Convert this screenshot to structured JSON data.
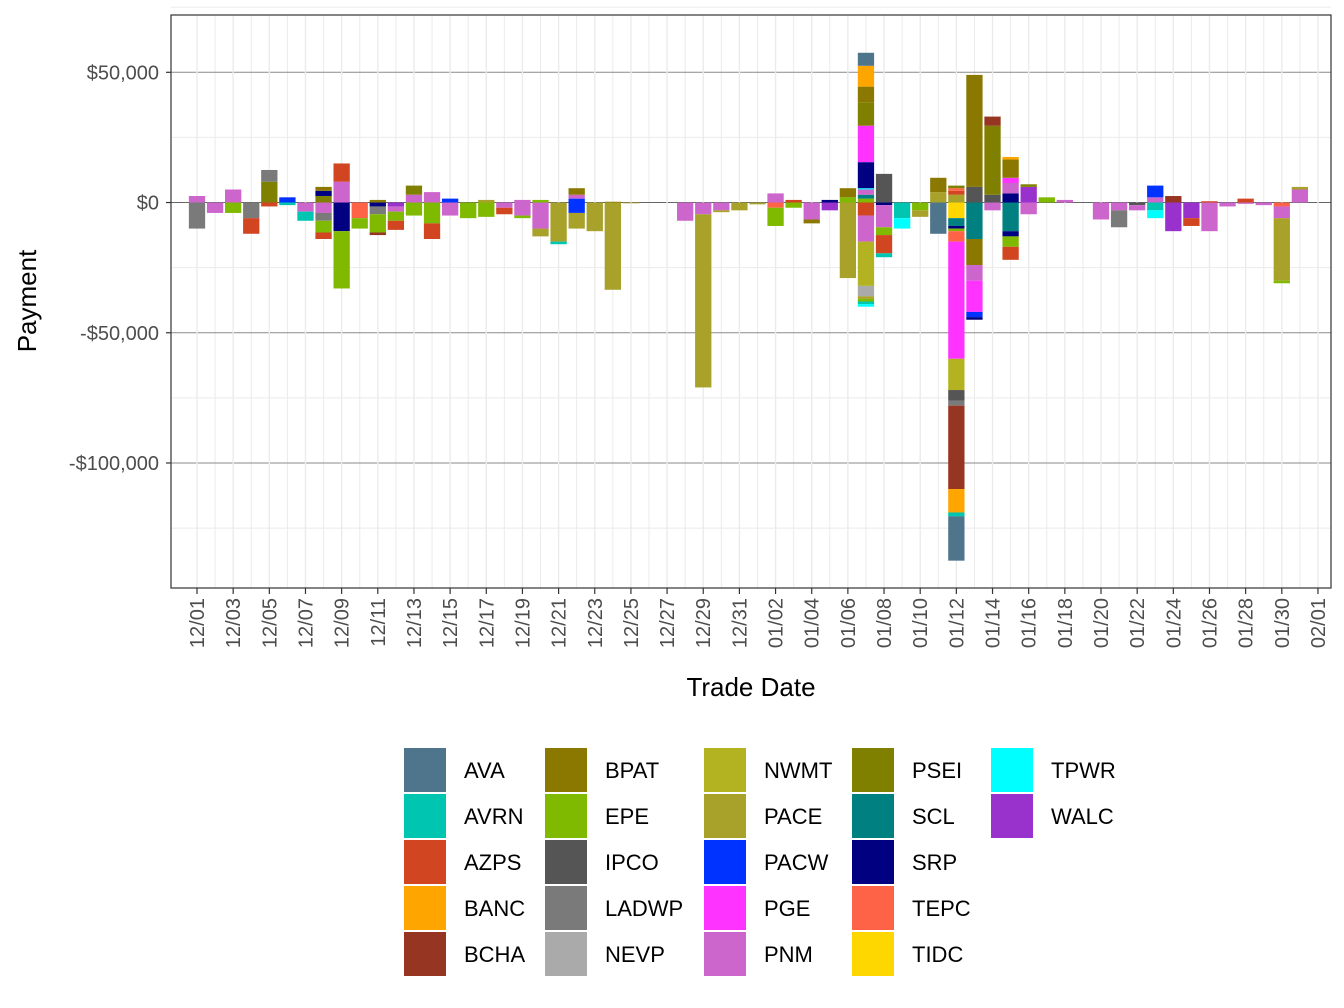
{
  "chart_data": {
    "type": "bar",
    "stacked": true,
    "title": "",
    "xlabel": "Trade Date",
    "ylabel": "Payment",
    "ylim": [
      -148000,
      72000
    ],
    "y_ticks": [
      {
        "value": 50000,
        "label": "$50,000"
      },
      {
        "value": 0,
        "label": "$0"
      },
      {
        "value": -50000,
        "label": "-$50,000"
      },
      {
        "value": -100000,
        "label": "-$100,000"
      }
    ],
    "x_tick_labels": [
      "12/01",
      "12/03",
      "12/05",
      "12/07",
      "12/09",
      "12/11",
      "12/13",
      "12/15",
      "12/17",
      "12/19",
      "12/21",
      "12/23",
      "12/25",
      "12/27",
      "12/29",
      "12/31",
      "01/02",
      "01/04",
      "01/06",
      "01/08",
      "01/10",
      "01/12",
      "01/14",
      "01/16",
      "01/18",
      "01/20",
      "01/22",
      "01/24",
      "01/26",
      "01/28",
      "01/30",
      "02/01"
    ],
    "legend_title": "",
    "legend_position": "bottom",
    "legend_columns": [
      [
        "AVA",
        "AVRN",
        "AZPS",
        "BANC",
        "BCHA"
      ],
      [
        "BPAT",
        "EPE",
        "IPCO",
        "LADWP",
        "NEVP"
      ],
      [
        "NWMT",
        "PACE",
        "PACW",
        "PGE",
        "PNM"
      ],
      [
        "PSEI",
        "SCL",
        "SRP",
        "TEPC",
        "TIDC"
      ],
      [
        "TPWR",
        "WALC"
      ]
    ],
    "series_colors": {
      "AVA": "#4e758c",
      "AVRN": "#00c5b0",
      "AZPS": "#d14520",
      "BANC": "#ffa500",
      "BCHA": "#963522",
      "BPAT": "#8a7800",
      "EPE": "#7fba00",
      "IPCO": "#555555",
      "LADWP": "#7a7a7a",
      "NEVP": "#aaaaaa",
      "NWMT": "#b3b322",
      "PACE": "#a8a22b",
      "PACW": "#0033ff",
      "PGE": "#ff33ff",
      "PNM": "#cc66cc",
      "PSEI": "#808000",
      "SCL": "#008080",
      "SRP": "#000080",
      "TEPC": "#ff6347",
      "TIDC": "#ffd700",
      "TPWR": "#00ffff",
      "WALC": "#9932cc"
    },
    "bars": [
      {
        "date": "12/01",
        "segments": [
          {
            "s": "PNM",
            "v": 2500
          },
          {
            "s": "LADWP",
            "v": -10000
          }
        ]
      },
      {
        "date": "12/02",
        "segments": [
          {
            "s": "PNM",
            "v": -4000
          }
        ]
      },
      {
        "date": "12/03",
        "segments": [
          {
            "s": "PNM",
            "v": 5000
          },
          {
            "s": "EPE",
            "v": -4000
          }
        ]
      },
      {
        "date": "12/04",
        "segments": [
          {
            "s": "LADWP",
            "v": -6000
          },
          {
            "s": "AZPS",
            "v": -6000
          }
        ]
      },
      {
        "date": "12/05",
        "segments": [
          {
            "s": "PSEI",
            "v": 8000
          },
          {
            "s": "LADWP",
            "v": 4500
          },
          {
            "s": "AZPS",
            "v": -1500
          }
        ]
      },
      {
        "date": "12/06",
        "segments": [
          {
            "s": "PACW",
            "v": 2000
          },
          {
            "s": "AVRN",
            "v": -1000
          }
        ]
      },
      {
        "date": "12/07",
        "segments": [
          {
            "s": "PNM",
            "v": -3500
          },
          {
            "s": "AVRN",
            "v": -3500
          }
        ]
      },
      {
        "date": "12/08",
        "segments": [
          {
            "s": "PSEI",
            "v": 2500
          },
          {
            "s": "SRP",
            "v": 2000
          },
          {
            "s": "BPAT",
            "v": 1500
          },
          {
            "s": "PNM",
            "v": -4000
          },
          {
            "s": "LADWP",
            "v": -3000
          },
          {
            "s": "EPE",
            "v": -4500
          },
          {
            "s": "AZPS",
            "v": -2500
          }
        ]
      },
      {
        "date": "12/09",
        "segments": [
          {
            "s": "PNM",
            "v": 8000
          },
          {
            "s": "AZPS",
            "v": 7000
          },
          {
            "s": "SRP",
            "v": -11000
          },
          {
            "s": "EPE",
            "v": -22000
          }
        ]
      },
      {
        "date": "12/10",
        "segments": [
          {
            "s": "TEPC",
            "v": -6000
          },
          {
            "s": "EPE",
            "v": -4000
          }
        ]
      },
      {
        "date": "12/11",
        "segments": [
          {
            "s": "BPAT",
            "v": 1000
          },
          {
            "s": "SRP",
            "v": -1500
          },
          {
            "s": "LADWP",
            "v": -3000
          },
          {
            "s": "EPE",
            "v": -7000
          },
          {
            "s": "BCHA",
            "v": -1000
          }
        ]
      },
      {
        "date": "12/12",
        "segments": [
          {
            "s": "WALC",
            "v": -1500
          },
          {
            "s": "PNM",
            "v": -2000
          },
          {
            "s": "EPE",
            "v": -3500
          },
          {
            "s": "AZPS",
            "v": -3500
          }
        ]
      },
      {
        "date": "12/13",
        "segments": [
          {
            "s": "PNM",
            "v": 3000
          },
          {
            "s": "PSEI",
            "v": 3500
          },
          {
            "s": "EPE",
            "v": -5000
          }
        ]
      },
      {
        "date": "12/14",
        "segments": [
          {
            "s": "PNM",
            "v": 4000
          },
          {
            "s": "EPE",
            "v": -8000
          },
          {
            "s": "AZPS",
            "v": -6000
          }
        ]
      },
      {
        "date": "12/15",
        "segments": [
          {
            "s": "PACW",
            "v": 1500
          },
          {
            "s": "PNM",
            "v": -5000
          }
        ]
      },
      {
        "date": "12/16",
        "segments": [
          {
            "s": "EPE",
            "v": -6000
          }
        ]
      },
      {
        "date": "12/17",
        "segments": [
          {
            "s": "PACE",
            "v": 1000
          },
          {
            "s": "EPE",
            "v": -5500
          }
        ]
      },
      {
        "date": "12/18",
        "segments": [
          {
            "s": "PNM",
            "v": -2000
          },
          {
            "s": "AZPS",
            "v": -2500
          }
        ]
      },
      {
        "date": "12/19",
        "segments": [
          {
            "s": "PNM",
            "v": 1000
          },
          {
            "s": "PNM",
            "v": -5000
          },
          {
            "s": "EPE",
            "v": -1000
          }
        ]
      },
      {
        "date": "12/20",
        "segments": [
          {
            "s": "EPE",
            "v": 1000
          },
          {
            "s": "PNM",
            "v": -10000
          },
          {
            "s": "PACE",
            "v": -3000
          }
        ]
      },
      {
        "date": "12/21",
        "segments": [
          {
            "s": "PACE",
            "v": -15000
          },
          {
            "s": "AVRN",
            "v": -1000
          }
        ]
      },
      {
        "date": "12/22",
        "segments": [
          {
            "s": "PACW",
            "v": 1500
          },
          {
            "s": "PNM",
            "v": 1500
          },
          {
            "s": "BPAT",
            "v": 2500
          },
          {
            "s": "PACW",
            "v": -4000
          },
          {
            "s": "PACE",
            "v": -6000
          }
        ]
      },
      {
        "date": "12/23",
        "segments": [
          {
            "s": "PACE",
            "v": -11000
          }
        ]
      },
      {
        "date": "12/24",
        "segments": [
          {
            "s": "BPAT",
            "v": 300
          },
          {
            "s": "PACE",
            "v": -33500
          }
        ]
      },
      {
        "date": "12/25",
        "segments": [
          {
            "s": "PACE",
            "v": -300
          }
        ]
      },
      {
        "date": "12/28",
        "segments": [
          {
            "s": "PNM",
            "v": -7000
          }
        ]
      },
      {
        "date": "12/29",
        "segments": [
          {
            "s": "PNM",
            "v": -4500
          },
          {
            "s": "PACE",
            "v": -66500
          }
        ]
      },
      {
        "date": "12/30",
        "segments": [
          {
            "s": "PNM",
            "v": -3000
          },
          {
            "s": "PACE",
            "v": -700
          }
        ]
      },
      {
        "date": "12/31",
        "segments": [
          {
            "s": "PACE",
            "v": -3000
          }
        ]
      },
      {
        "date": "01/01",
        "segments": [
          {
            "s": "PACE",
            "v": -700
          }
        ]
      },
      {
        "date": "01/02",
        "segments": [
          {
            "s": "PNM",
            "v": 3500
          },
          {
            "s": "TEPC",
            "v": -2000
          },
          {
            "s": "EPE",
            "v": -7000
          }
        ]
      },
      {
        "date": "01/03",
        "segments": [
          {
            "s": "AZPS",
            "v": 1000
          },
          {
            "s": "EPE",
            "v": -2000
          }
        ]
      },
      {
        "date": "01/04",
        "segments": [
          {
            "s": "PNM",
            "v": -6500
          },
          {
            "s": "BPAT",
            "v": -1500
          }
        ]
      },
      {
        "date": "01/05",
        "segments": [
          {
            "s": "SRP",
            "v": 1000
          },
          {
            "s": "WALC",
            "v": -3000
          }
        ]
      },
      {
        "date": "01/06",
        "segments": [
          {
            "s": "EPE",
            "v": 2000
          },
          {
            "s": "BPAT",
            "v": 3500
          },
          {
            "s": "PACE",
            "v": -29000
          }
        ]
      },
      {
        "date": "01/07",
        "segments": [
          {
            "s": "EPE",
            "v": 1500
          },
          {
            "s": "SCL",
            "v": 1500
          },
          {
            "s": "PNM",
            "v": 2000
          },
          {
            "s": "TPWR",
            "v": 500
          },
          {
            "s": "SRP",
            "v": 10000
          },
          {
            "s": "PGE",
            "v": 14000
          },
          {
            "s": "PSEI",
            "v": 9000
          },
          {
            "s": "BPAT",
            "v": 6000
          },
          {
            "s": "BANC",
            "v": 8000
          },
          {
            "s": "AVA",
            "v": 5000
          },
          {
            "s": "AZPS",
            "v": -5000
          },
          {
            "s": "PNM",
            "v": -10000
          },
          {
            "s": "NWMT",
            "v": -17000
          },
          {
            "s": "NEVP",
            "v": -4000
          },
          {
            "s": "PACE",
            "v": -1000
          },
          {
            "s": "EPE",
            "v": -1000
          },
          {
            "s": "AVRN",
            "v": -1000
          },
          {
            "s": "TPWR",
            "v": -1000
          }
        ]
      },
      {
        "date": "01/08",
        "segments": [
          {
            "s": "IPCO",
            "v": 11000
          },
          {
            "s": "SRP",
            "v": -1000
          },
          {
            "s": "PNM",
            "v": -8500
          },
          {
            "s": "EPE",
            "v": -3000
          },
          {
            "s": "AZPS",
            "v": -7000
          },
          {
            "s": "AVRN",
            "v": -1500
          }
        ]
      },
      {
        "date": "01/09",
        "segments": [
          {
            "s": "AVRN",
            "v": -6000
          },
          {
            "s": "TPWR",
            "v": -4000
          }
        ]
      },
      {
        "date": "01/10",
        "segments": [
          {
            "s": "EPE",
            "v": -3000
          },
          {
            "s": "PACE",
            "v": -2500
          }
        ]
      },
      {
        "date": "01/11",
        "segments": [
          {
            "s": "PACE",
            "v": 4000
          },
          {
            "s": "BPAT",
            "v": 5500
          },
          {
            "s": "AVA",
            "v": -12000
          }
        ]
      },
      {
        "date": "01/12",
        "segments": [
          {
            "s": "PACE",
            "v": 3000
          },
          {
            "s": "AZPS",
            "v": 1500
          },
          {
            "s": "TEPC",
            "v": 1000
          },
          {
            "s": "PSEI",
            "v": 1000
          },
          {
            "s": "TIDC",
            "v": -6000
          },
          {
            "s": "SCL",
            "v": -3000
          },
          {
            "s": "SRP",
            "v": -1000
          },
          {
            "s": "EPE",
            "v": -1000
          },
          {
            "s": "TEPC",
            "v": -4000
          },
          {
            "s": "PGE",
            "v": -45000
          },
          {
            "s": "NWMT",
            "v": -12000
          },
          {
            "s": "IPCO",
            "v": -4000
          },
          {
            "s": "LADWP",
            "v": -2000
          },
          {
            "s": "BCHA",
            "v": -32000
          },
          {
            "s": "BANC",
            "v": -9000
          },
          {
            "s": "AVRN",
            "v": -1500
          },
          {
            "s": "AVA",
            "v": -17000
          }
        ]
      },
      {
        "date": "01/13",
        "segments": [
          {
            "s": "IPCO",
            "v": 6000
          },
          {
            "s": "BPAT",
            "v": 43000
          },
          {
            "s": "SCL",
            "v": -14000
          },
          {
            "s": "BPAT",
            "v": -10000
          },
          {
            "s": "PNM",
            "v": -6000
          },
          {
            "s": "PGE",
            "v": -12000
          },
          {
            "s": "PACW",
            "v": -2000
          },
          {
            "s": "SRP",
            "v": -1000
          }
        ]
      },
      {
        "date": "01/14",
        "segments": [
          {
            "s": "IPCO",
            "v": 3000
          },
          {
            "s": "PSEI",
            "v": 26500
          },
          {
            "s": "BCHA",
            "v": 3500
          },
          {
            "s": "PNM",
            "v": -3000
          }
        ]
      },
      {
        "date": "01/15",
        "segments": [
          {
            "s": "SRP",
            "v": 3500
          },
          {
            "s": "PNM",
            "v": 4000
          },
          {
            "s": "PGE",
            "v": 2000
          },
          {
            "s": "BPAT",
            "v": 7000
          },
          {
            "s": "BANC",
            "v": 1000
          },
          {
            "s": "SCL",
            "v": -11000
          },
          {
            "s": "SRP",
            "v": -2000
          },
          {
            "s": "EPE",
            "v": -4000
          },
          {
            "s": "AZPS",
            "v": -5000
          }
        ]
      },
      {
        "date": "01/16",
        "segments": [
          {
            "s": "WALC",
            "v": 6000
          },
          {
            "s": "PSEI",
            "v": 1000
          },
          {
            "s": "PNM",
            "v": -4500
          }
        ]
      },
      {
        "date": "01/17",
        "segments": [
          {
            "s": "EPE",
            "v": 2000
          }
        ]
      },
      {
        "date": "01/18",
        "segments": [
          {
            "s": "PNM",
            "v": 1000
          }
        ]
      },
      {
        "date": "01/20",
        "segments": [
          {
            "s": "PNM",
            "v": -6500
          }
        ]
      },
      {
        "date": "01/21",
        "segments": [
          {
            "s": "PNM",
            "v": -3000
          },
          {
            "s": "LADWP",
            "v": -6500
          }
        ]
      },
      {
        "date": "01/22",
        "segments": [
          {
            "s": "IPCO",
            "v": -1000
          },
          {
            "s": "PNM",
            "v": -2000
          }
        ]
      },
      {
        "date": "01/23",
        "segments": [
          {
            "s": "PNM",
            "v": 2000
          },
          {
            "s": "PACW",
            "v": 4500
          },
          {
            "s": "AVRN",
            "v": -3000
          },
          {
            "s": "TPWR",
            "v": -3000
          }
        ]
      },
      {
        "date": "01/24",
        "segments": [
          {
            "s": "BCHA",
            "v": 2500
          },
          {
            "s": "WALC",
            "v": -11000
          }
        ]
      },
      {
        "date": "01/25",
        "segments": [
          {
            "s": "WALC",
            "v": -6000
          },
          {
            "s": "AZPS",
            "v": -3000
          }
        ]
      },
      {
        "date": "01/26",
        "segments": [
          {
            "s": "AZPS",
            "v": 500
          },
          {
            "s": "PNM",
            "v": -11000
          }
        ]
      },
      {
        "date": "01/27",
        "segments": [
          {
            "s": "PNM",
            "v": -1500
          }
        ]
      },
      {
        "date": "01/28",
        "segments": [
          {
            "s": "AZPS",
            "v": 1500
          },
          {
            "s": "PNM",
            "v": -500
          }
        ]
      },
      {
        "date": "01/29",
        "segments": [
          {
            "s": "PNM",
            "v": -1000
          }
        ]
      },
      {
        "date": "01/30",
        "segments": [
          {
            "s": "TEPC",
            "v": -1500
          },
          {
            "s": "PNM",
            "v": -4500
          },
          {
            "s": "PACE",
            "v": -24000
          },
          {
            "s": "EPE",
            "v": -1000
          }
        ]
      },
      {
        "date": "01/31",
        "segments": [
          {
            "s": "PNM",
            "v": 5000
          },
          {
            "s": "PACE",
            "v": 1000
          }
        ]
      }
    ]
  }
}
